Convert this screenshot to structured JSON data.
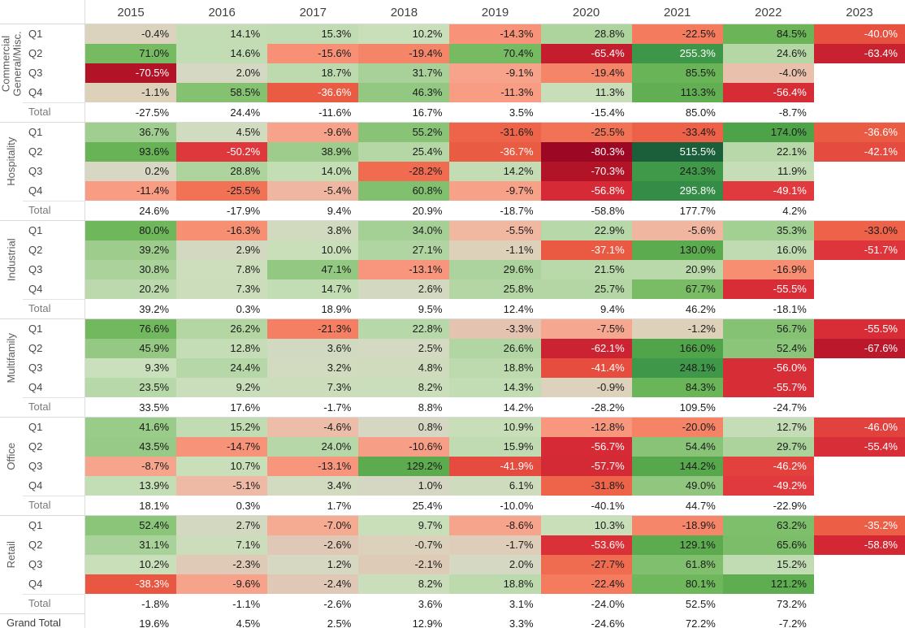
{
  "chart_data": {
    "type": "heatmap",
    "columns": [
      "2015",
      "2016",
      "2017",
      "2018",
      "2019",
      "2020",
      "2021",
      "2022",
      "2023"
    ],
    "value_format": "percent_one_decimal",
    "legend_position": "none",
    "grid": "group-separators",
    "row_groups": [
      {
        "label": "Commercial General/Misc.",
        "rows": [
          {
            "label": "Q1",
            "values": [
              -0.4,
              14.1,
              15.3,
              10.2,
              -14.3,
              28.8,
              -22.5,
              84.5,
              -40.0
            ]
          },
          {
            "label": "Q2",
            "values": [
              71.0,
              14.6,
              -15.6,
              -19.4,
              70.4,
              -65.4,
              255.3,
              24.6,
              -63.4
            ]
          },
          {
            "label": "Q3",
            "values": [
              -70.5,
              2.0,
              18.7,
              31.7,
              -9.1,
              -19.4,
              85.5,
              -4.0,
              null
            ]
          },
          {
            "label": "Q4",
            "values": [
              -1.1,
              58.5,
              -36.6,
              46.3,
              -11.3,
              11.3,
              113.3,
              -56.4,
              null
            ]
          }
        ],
        "total": {
          "label": "Total",
          "values": [
            -27.5,
            24.4,
            -11.6,
            16.7,
            3.5,
            -15.4,
            85.0,
            -8.7,
            null
          ]
        }
      },
      {
        "label": "Hospitality",
        "rows": [
          {
            "label": "Q1",
            "values": [
              36.7,
              4.5,
              -9.6,
              55.2,
              -31.6,
              -25.5,
              -33.4,
              174.0,
              -36.6
            ]
          },
          {
            "label": "Q2",
            "values": [
              93.6,
              -50.2,
              38.9,
              25.4,
              -36.7,
              -80.3,
              515.5,
              22.1,
              -42.1
            ]
          },
          {
            "label": "Q3",
            "values": [
              0.2,
              28.8,
              14.0,
              -28.2,
              14.2,
              -70.3,
              243.3,
              11.9,
              null
            ]
          },
          {
            "label": "Q4",
            "values": [
              -11.4,
              -25.5,
              -5.4,
              60.8,
              -9.7,
              -56.8,
              295.8,
              -49.1,
              null
            ]
          }
        ],
        "total": {
          "label": "Total",
          "values": [
            24.6,
            -17.9,
            9.4,
            20.9,
            -18.7,
            -58.8,
            177.7,
            4.2,
            null
          ]
        }
      },
      {
        "label": "Industrial",
        "rows": [
          {
            "label": "Q1",
            "values": [
              80.0,
              -16.3,
              3.8,
              34.0,
              -5.5,
              22.9,
              -5.6,
              35.3,
              -33.0
            ]
          },
          {
            "label": "Q2",
            "values": [
              39.2,
              2.9,
              10.0,
              27.1,
              -1.1,
              -37.1,
              130.0,
              16.0,
              -51.7
            ]
          },
          {
            "label": "Q3",
            "values": [
              30.8,
              7.8,
              47.1,
              -13.1,
              29.6,
              21.5,
              20.9,
              -16.9,
              null
            ]
          },
          {
            "label": "Q4",
            "values": [
              20.2,
              7.3,
              14.7,
              2.6,
              25.8,
              25.7,
              67.7,
              -55.5,
              null
            ]
          }
        ],
        "total": {
          "label": "Total",
          "values": [
            39.2,
            0.3,
            18.9,
            9.5,
            12.4,
            9.4,
            46.2,
            -18.1,
            null
          ]
        }
      },
      {
        "label": "Multifamily",
        "rows": [
          {
            "label": "Q1",
            "values": [
              76.6,
              26.2,
              -21.3,
              22.8,
              -3.3,
              -7.5,
              -1.2,
              56.7,
              -55.5
            ]
          },
          {
            "label": "Q2",
            "values": [
              45.9,
              12.8,
              3.6,
              2.5,
              26.6,
              -62.1,
              166.0,
              52.4,
              -67.6
            ]
          },
          {
            "label": "Q3",
            "values": [
              9.3,
              24.4,
              3.2,
              4.8,
              18.8,
              -41.4,
              248.1,
              -56.0,
              null
            ]
          },
          {
            "label": "Q4",
            "values": [
              23.5,
              9.2,
              7.3,
              8.2,
              14.3,
              -0.9,
              84.3,
              -55.7,
              null
            ]
          }
        ],
        "total": {
          "label": "Total",
          "values": [
            33.5,
            17.6,
            -1.7,
            8.8,
            14.2,
            -28.2,
            109.5,
            -24.7,
            null
          ]
        }
      },
      {
        "label": "Office",
        "rows": [
          {
            "label": "Q1",
            "values": [
              41.6,
              15.2,
              -4.6,
              0.8,
              10.9,
              -12.8,
              -20.0,
              12.7,
              -46.0
            ]
          },
          {
            "label": "Q2",
            "values": [
              43.5,
              -14.7,
              24.0,
              -10.6,
              15.9,
              -56.7,
              54.4,
              29.7,
              -55.4
            ]
          },
          {
            "label": "Q3",
            "values": [
              -8.7,
              10.7,
              -13.1,
              129.2,
              -41.9,
              -57.7,
              144.2,
              -46.2,
              null
            ]
          },
          {
            "label": "Q4",
            "values": [
              13.9,
              -5.1,
              3.4,
              1.0,
              6.1,
              -31.8,
              49.0,
              -49.2,
              null
            ]
          }
        ],
        "total": {
          "label": "Total",
          "values": [
            18.1,
            0.3,
            1.7,
            25.4,
            -10.0,
            -40.1,
            44.7,
            -22.9,
            null
          ]
        }
      },
      {
        "label": "Retail",
        "rows": [
          {
            "label": "Q1",
            "values": [
              52.4,
              2.7,
              -7.0,
              9.7,
              -8.6,
              10.3,
              -18.9,
              63.2,
              -35.2
            ]
          },
          {
            "label": "Q2",
            "values": [
              31.1,
              7.1,
              -2.6,
              -0.7,
              -1.7,
              -53.6,
              129.1,
              65.6,
              -58.8
            ]
          },
          {
            "label": "Q3",
            "values": [
              10.2,
              -2.3,
              1.2,
              -2.1,
              2.0,
              -27.7,
              61.8,
              15.2,
              null
            ]
          },
          {
            "label": "Q4",
            "values": [
              -38.3,
              -9.6,
              -2.4,
              8.2,
              18.8,
              -22.4,
              80.1,
              121.2,
              null
            ]
          }
        ],
        "total": {
          "label": "Total",
          "values": [
            -1.8,
            -1.1,
            -2.6,
            3.6,
            3.1,
            -24.0,
            52.5,
            73.2,
            null
          ]
        }
      }
    ],
    "grand_total": {
      "label": "Grand Total",
      "values": [
        19.6,
        4.5,
        2.5,
        12.9,
        3.3,
        -24.6,
        72.2,
        -7.2,
        null
      ]
    },
    "color_scale": {
      "type": "diverging",
      "center": 0,
      "negative_extent": -80.3,
      "positive_extent": 515.5,
      "negative_color": "#9c0824",
      "center_color": "#d9d6c4",
      "positive_color": "#0b5f3a",
      "white_text_below": -35,
      "white_text_above": 250
    }
  }
}
